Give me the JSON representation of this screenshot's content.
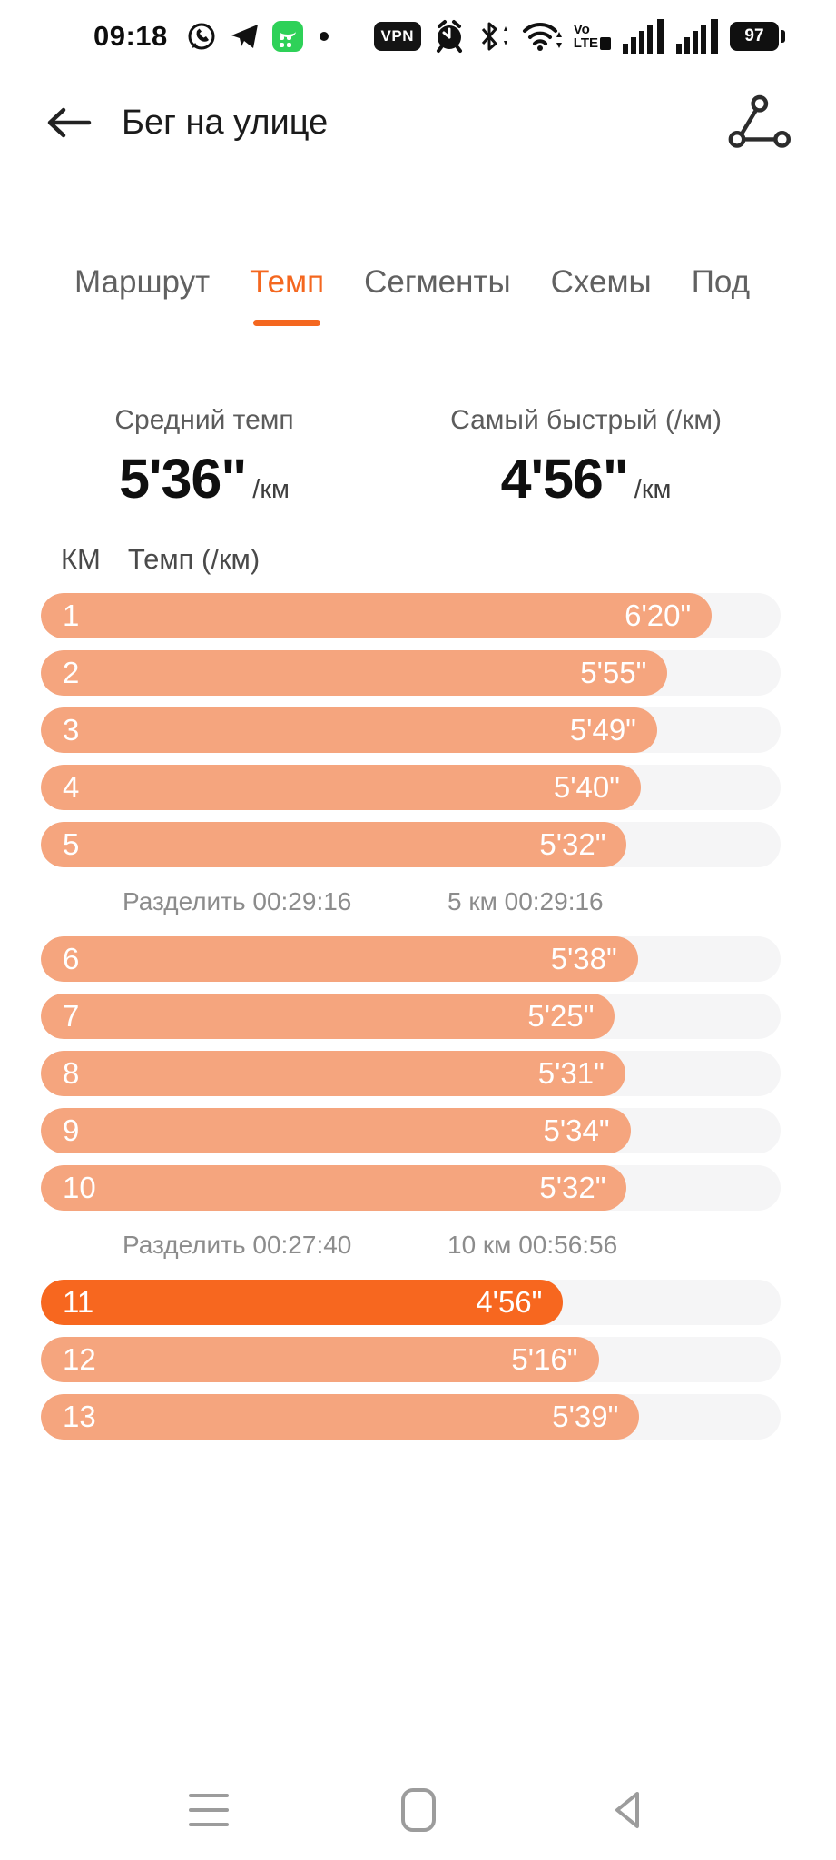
{
  "colors": {
    "accent": "#f4671f",
    "bar": "#f5a57e",
    "bar_highlight": "#f7671f",
    "track": "#f5f5f6"
  },
  "status_bar": {
    "time": "09:18",
    "vpn_label": "VPN",
    "volte_line1": "Vo",
    "volte_line2": "LTE",
    "battery_percent": "97",
    "icons": [
      "whatsapp-icon",
      "telegram-icon",
      "messenger-app-icon",
      "notification-dot",
      "vpn-badge",
      "alarm-icon",
      "bluetooth-icon",
      "wifi-icon",
      "volte-icon",
      "signal-bars-sim1",
      "signal-bars-sim2",
      "battery-indicator"
    ]
  },
  "header": {
    "title": "Бег на улице",
    "icons": [
      "back-arrow-icon",
      "share-route-icon"
    ]
  },
  "tabs": [
    {
      "label": "Маршрут",
      "active": false
    },
    {
      "label": "Темп",
      "active": true
    },
    {
      "label": "Сегменты",
      "active": false
    },
    {
      "label": "Схемы",
      "active": false
    },
    {
      "label": "Под",
      "active": false
    }
  ],
  "stats": [
    {
      "label": "Средний темп",
      "value": "5'36\"",
      "unit": "/км"
    },
    {
      "label": "Самый быстрый (/км)",
      "value": "4'56\"",
      "unit": "/км"
    }
  ],
  "table": {
    "col_km": "КМ",
    "col_pace": "Темп (/км)"
  },
  "pace_rows": [
    {
      "type": "bar",
      "km": "1",
      "pace": "6'20\"",
      "seconds": 380,
      "highlight": false
    },
    {
      "type": "bar",
      "km": "2",
      "pace": "5'55\"",
      "seconds": 355,
      "highlight": false
    },
    {
      "type": "bar",
      "km": "3",
      "pace": "5'49\"",
      "seconds": 349,
      "highlight": false
    },
    {
      "type": "bar",
      "km": "4",
      "pace": "5'40\"",
      "seconds": 340,
      "highlight": false
    },
    {
      "type": "bar",
      "km": "5",
      "pace": "5'32\"",
      "seconds": 332,
      "highlight": false
    },
    {
      "type": "split",
      "left": "Разделить 00:29:16",
      "right": "5 км 00:29:16"
    },
    {
      "type": "bar",
      "km": "6",
      "pace": "5'38\"",
      "seconds": 338,
      "highlight": false
    },
    {
      "type": "bar",
      "km": "7",
      "pace": "5'25\"",
      "seconds": 325,
      "highlight": false
    },
    {
      "type": "bar",
      "km": "8",
      "pace": "5'31\"",
      "seconds": 331,
      "highlight": false
    },
    {
      "type": "bar",
      "km": "9",
      "pace": "5'34\"",
      "seconds": 334,
      "highlight": false
    },
    {
      "type": "bar",
      "km": "10",
      "pace": "5'32\"",
      "seconds": 332,
      "highlight": false
    },
    {
      "type": "split",
      "left": "Разделить 00:27:40",
      "right": "10 км 00:56:56"
    },
    {
      "type": "bar",
      "km": "11",
      "pace": "4'56\"",
      "seconds": 296,
      "highlight": true
    },
    {
      "type": "bar",
      "km": "12",
      "pace": "5'16\"",
      "seconds": 316,
      "highlight": false
    },
    {
      "type": "bar",
      "km": "13",
      "pace": "5'39\"",
      "seconds": 339,
      "highlight": false
    }
  ],
  "chart_data": {
    "type": "bar",
    "orientation": "horizontal",
    "title": "Темп (/км)",
    "categories": [
      1,
      2,
      3,
      4,
      5,
      6,
      7,
      8,
      9,
      10,
      11,
      12,
      13
    ],
    "values_seconds_per_km": [
      380,
      355,
      349,
      340,
      332,
      338,
      325,
      331,
      334,
      332,
      296,
      316,
      339
    ],
    "value_labels": [
      "6'20\"",
      "5'55\"",
      "5'49\"",
      "5'40\"",
      "5'32\"",
      "5'38\"",
      "5'25\"",
      "5'31\"",
      "5'34\"",
      "5'32\"",
      "4'56\"",
      "5'16\"",
      "5'39\""
    ],
    "highlight_category": 11,
    "scale_max_seconds": 419,
    "average_pace": "5'36\"/км",
    "fastest_pace": "4'56\"/км",
    "splits": [
      {
        "after_km": 5,
        "split_time": "Разделить 00:29:16",
        "cumulative": "5 км 00:29:16"
      },
      {
        "after_km": 10,
        "split_time": "Разделить 00:27:40",
        "cumulative": "10 км 00:56:56"
      }
    ]
  },
  "nav_bar": {
    "icons": [
      "recents-icon",
      "home-icon",
      "back-icon"
    ]
  }
}
